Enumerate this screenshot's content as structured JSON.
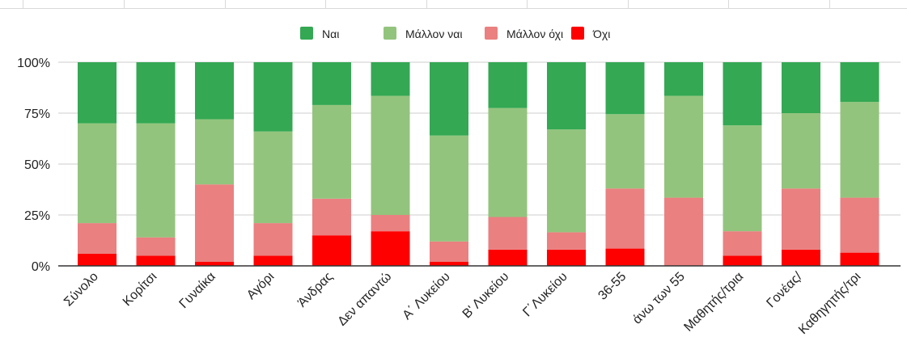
{
  "colors": {
    "yes": "#34a853",
    "rather_yes": "#93c47d",
    "rather_no": "#ea8080",
    "no": "#ff0000",
    "grid": "#cccccc",
    "axis": "#333333",
    "text": "#222222"
  },
  "chart_data": {
    "type": "bar",
    "stacked": true,
    "percent": true,
    "legend_position": "top",
    "grid": true,
    "ylim": [
      0,
      100
    ],
    "yticks": [
      "0%",
      "25%",
      "50%",
      "75%",
      "100%"
    ],
    "ytick_values": [
      0,
      25,
      50,
      75,
      100
    ],
    "categories": [
      "Σύνολο",
      "Κορίτσι",
      "Γυναίκα",
      "Αγόρι",
      "Άνδρας",
      "Δεν απαντώ",
      "Α΄ Λυκείου",
      "Β' Λυκείου",
      "Γ΄Λυκείου",
      "36-55",
      "άνω των 55",
      "Μαθητής/τρια",
      "Γονέας/",
      "Καθηγητής/τρι"
    ],
    "series": [
      {
        "name": "Όχι",
        "color_key": "no",
        "values": [
          6,
          5,
          2,
          5,
          15,
          17,
          2,
          8,
          8,
          8.5,
          0,
          5,
          8,
          6.5
        ]
      },
      {
        "name": "Μάλλον όχι",
        "color_key": "rather_no",
        "values": [
          15,
          9,
          38,
          16,
          18,
          8,
          10,
          16,
          8.5,
          29.5,
          33.5,
          12,
          30,
          27
        ]
      },
      {
        "name": "Μάλλον ναι",
        "color_key": "rather_yes",
        "values": [
          49,
          56,
          32,
          45,
          46,
          58.5,
          52,
          53.5,
          50.5,
          36.5,
          50,
          52,
          37,
          47
        ]
      },
      {
        "name": "Ναι",
        "color_key": "yes",
        "values": [
          30,
          30,
          28,
          34,
          21,
          16.5,
          36,
          22.5,
          33,
          25.5,
          16.5,
          31,
          25,
          19.5
        ]
      }
    ],
    "legend": [
      {
        "label": "Ναι",
        "color_key": "yes"
      },
      {
        "label": "Μάλλον ναι",
        "color_key": "rather_yes"
      },
      {
        "label": "Μάλλον όχι",
        "color_key": "rather_no"
      },
      {
        "label": "Όχι",
        "color_key": "no"
      }
    ]
  }
}
